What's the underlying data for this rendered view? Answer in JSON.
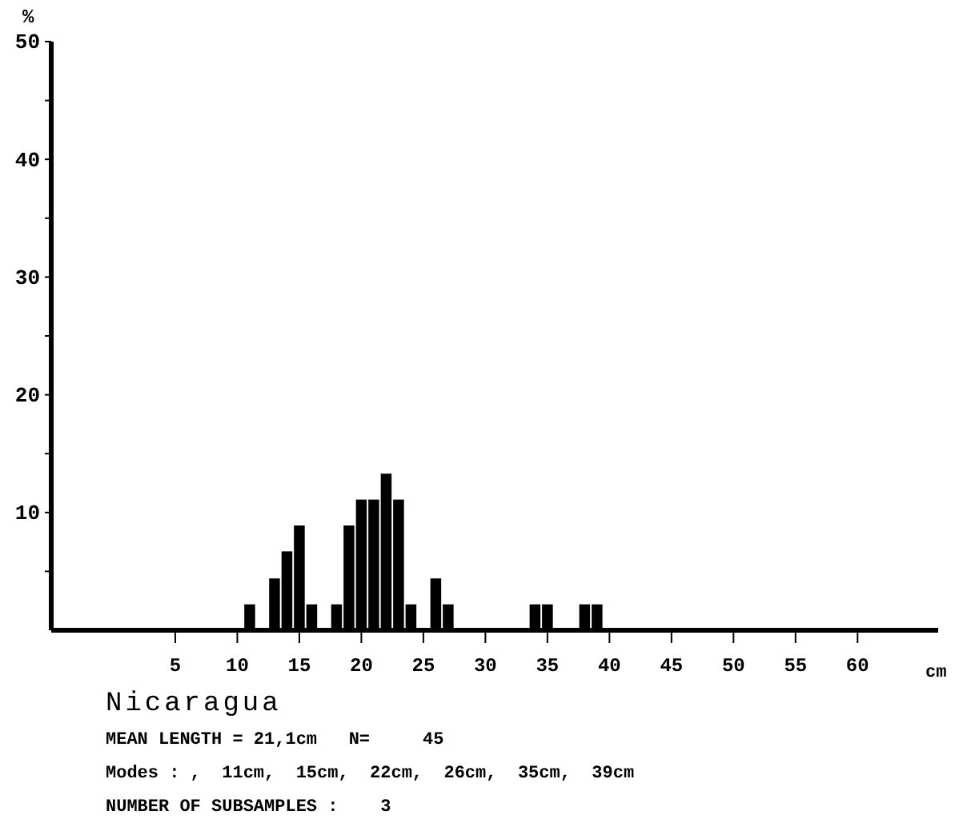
{
  "chart_data": {
    "type": "histogram",
    "title": "Nicaragua",
    "xlabel": "cm",
    "ylabel": "%",
    "bins": [
      10.5,
      11.5,
      12.5,
      13.5,
      14.5,
      15.5,
      16.5,
      17.5,
      18.5,
      19.5,
      20.5,
      21.5,
      22.5,
      23.5,
      24.5,
      25.5,
      26.5,
      27.5,
      28.5,
      29.5,
      30.5,
      31.5,
      32.5,
      33.5,
      34.5,
      35.5,
      36.5,
      37.5,
      38.5,
      39.5
    ],
    "values": [
      2.2,
      0,
      4.4,
      6.7,
      8.9,
      2.2,
      0,
      2.2,
      8.9,
      11.1,
      11.1,
      13.3,
      11.1,
      2.2,
      0,
      4.4,
      2.2,
      0,
      0,
      0,
      0,
      0,
      0,
      2.2,
      2.2,
      0,
      0,
      2.2,
      2.2
    ],
    "color": "#000000",
    "xlim": [
      -5,
      66.5
    ],
    "xticks": [
      5,
      10,
      15,
      20,
      25,
      30,
      35,
      40,
      45,
      50,
      55,
      60
    ],
    "ylim": [
      0,
      50
    ],
    "yticks": [
      {
        "value": 5,
        "label": null
      },
      10,
      {
        "value": 15,
        "label": null
      },
      20,
      {
        "value": 25,
        "label": null
      },
      30,
      {
        "value": 35,
        "label": null
      },
      40,
      {
        "value": 45,
        "label": null
      },
      50
    ],
    "grid": false,
    "annotations": [
      "MEAN LENGTH = 21,1cm   N=     45",
      "Modes : ,  11cm,  15cm,  22cm,  26cm,  35cm,  39cm",
      "NUMBER OF SUBSAMPLES :    3"
    ]
  }
}
